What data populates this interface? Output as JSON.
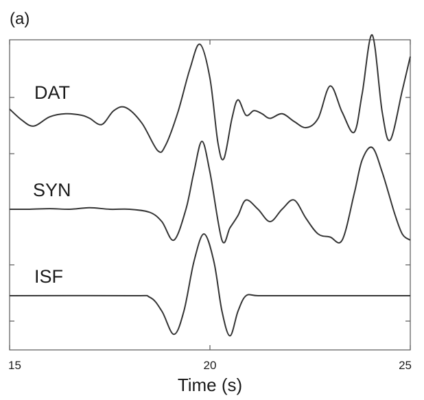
{
  "panel_label": "(a)",
  "chart_data": {
    "type": "line",
    "title": "",
    "xlabel": "Time (s)",
    "ylabel": "",
    "xlim": [
      15,
      25
    ],
    "xticks": [
      15,
      20,
      25
    ],
    "y_ticks_labeled": false,
    "grid": false,
    "legend": "none (inline trace labels)",
    "line_color": "#333333",
    "series": [
      {
        "name": "DAT",
        "x": [
          15.0,
          15.3,
          15.6,
          16.0,
          16.4,
          16.8,
          17.0,
          17.3,
          17.6,
          17.9,
          18.3,
          18.7,
          18.9,
          19.2,
          19.5,
          19.75,
          20.0,
          20.2,
          20.35,
          20.55,
          20.7,
          20.9,
          21.1,
          21.3,
          21.5,
          21.8,
          22.1,
          22.4,
          22.7,
          23.0,
          23.3,
          23.6,
          23.8,
          24.05,
          24.3,
          24.5,
          24.8,
          25.0
        ],
        "y": [
          0.6,
          0.25,
          0.05,
          0.35,
          0.45,
          0.4,
          0.3,
          0.1,
          0.55,
          0.65,
          0.15,
          -0.75,
          -0.55,
          0.5,
          1.9,
          2.7,
          1.6,
          -0.5,
          -1.0,
          0.3,
          0.9,
          0.4,
          0.55,
          0.45,
          0.3,
          0.45,
          0.2,
          0.0,
          0.3,
          1.35,
          0.5,
          -0.15,
          1.1,
          3.0,
          0.5,
          -0.4,
          1.2,
          2.3
        ]
      },
      {
        "name": "SYN",
        "x": [
          15.0,
          15.5,
          16.0,
          16.5,
          17.0,
          17.5,
          18.0,
          18.5,
          18.8,
          19.1,
          19.4,
          19.6,
          19.8,
          20.0,
          20.3,
          20.5,
          20.7,
          20.9,
          21.2,
          21.5,
          21.8,
          22.1,
          22.4,
          22.7,
          23.0,
          23.3,
          23.6,
          23.8,
          24.05,
          24.3,
          24.6,
          24.8,
          25.0
        ],
        "y": [
          0.0,
          0.0,
          0.02,
          0.0,
          0.05,
          0.0,
          0.0,
          -0.1,
          -0.4,
          -1.0,
          0.0,
          1.2,
          2.2,
          1.2,
          -1.0,
          -0.6,
          -0.2,
          0.3,
          0.0,
          -0.4,
          0.0,
          0.3,
          -0.3,
          -0.8,
          -0.9,
          -1.0,
          0.5,
          1.6,
          2.0,
          1.2,
          -0.1,
          -0.8,
          -1.0
        ]
      },
      {
        "name": "ISF",
        "x": [
          15.0,
          18.0,
          18.5,
          18.8,
          19.1,
          19.35,
          19.6,
          19.85,
          20.1,
          20.3,
          20.5,
          20.7,
          20.9,
          21.2,
          22.0,
          25.0
        ],
        "y": [
          0.0,
          0.0,
          -0.05,
          -0.5,
          -1.25,
          -0.5,
          1.1,
          2.0,
          1.1,
          -0.5,
          -1.3,
          -0.5,
          0.0,
          0.0,
          0.0,
          0.0
        ]
      }
    ]
  }
}
